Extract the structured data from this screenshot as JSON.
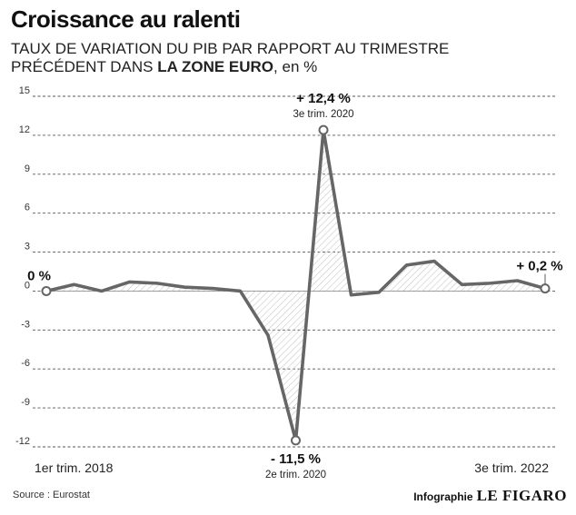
{
  "header": {
    "title": "Croissance au ralenti",
    "subtitle_line1": "TAUX DE VARIATION DU PIB PAR RAPPORT AU TRIMESTRE",
    "subtitle_line2_pre": "PRÉCÉDENT DANS ",
    "subtitle_line2_bold": "LA ZONE EURO",
    "subtitle_line2_post": ", en %"
  },
  "footer": {
    "source": "Source : Eurostat",
    "credit_label": "Infographie",
    "credit_brand": "LE FIGARO"
  },
  "colors": {
    "line": "#666666",
    "grid": "#555555",
    "hatch": "#c8c8c8",
    "text": "#111111"
  },
  "chart_data": {
    "type": "line",
    "ylim": [
      -12,
      15
    ],
    "yticks": [
      "15",
      "12",
      "9",
      "6",
      "3",
      "0",
      "-3",
      "-6",
      "-9",
      "-12"
    ],
    "ytick_values": [
      15,
      12,
      9,
      6,
      3,
      0,
      -3,
      -6,
      -9,
      -12
    ],
    "grid": true,
    "x_start_label": "1er trim. 2018",
    "x_end_label": "3e trim. 2022",
    "values": [
      0,
      0.5,
      0,
      0.7,
      0.6,
      0.3,
      0.2,
      0,
      -3.4,
      -11.5,
      12.4,
      -0.3,
      -0.1,
      2.0,
      2.3,
      0.5,
      0.6,
      0.8,
      0.2
    ],
    "annotations": [
      {
        "index": 0,
        "value_label": "0 %",
        "sub_label": ""
      },
      {
        "index": 10,
        "value_label": "+ 12,4 %",
        "sub_label": "3e trim. 2020"
      },
      {
        "index": 9,
        "value_label": "- 11,5 %",
        "sub_label": "2e trim. 2020"
      },
      {
        "index": 18,
        "value_label": "+ 0,2 %",
        "sub_label": ""
      }
    ]
  }
}
